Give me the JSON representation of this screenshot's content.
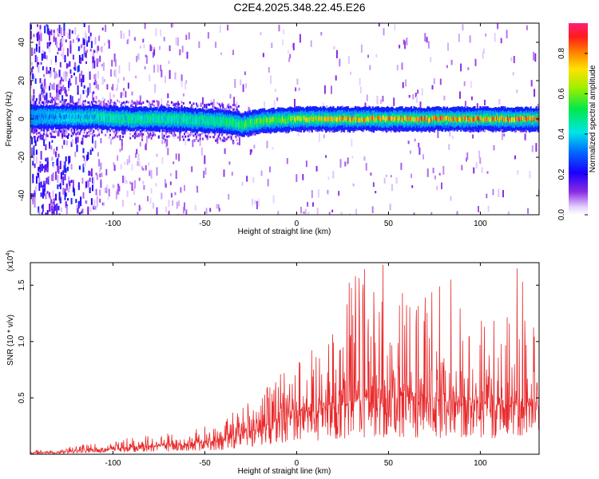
{
  "title": "C2E4.2025.348.22.45.E26",
  "colors": {
    "background": "#ffffff",
    "snr_line": "#e8292b",
    "axis": "#000000"
  },
  "chart_data": [
    {
      "type": "heatmap",
      "name": "spectrogram",
      "xlabel": "Height of straight line (km)",
      "ylabel": "Frequency (Hz)",
      "xlim": [
        -145,
        132
      ],
      "ylim": [
        -50,
        50
      ],
      "xticks": [
        -100,
        -50,
        0,
        50,
        100
      ],
      "xtick_labels": [
        "-100",
        "-50",
        "0",
        "50",
        "100"
      ],
      "yticks": [
        -40,
        -20,
        0,
        20,
        40
      ],
      "ytick_labels": [
        "-40",
        "-20",
        "0",
        "20",
        "40"
      ],
      "colorbar": {
        "label": "Normalized spectral amplitude",
        "range": [
          0,
          0.95
        ],
        "ticks": [
          0,
          0.2,
          0.4,
          0.6,
          0.8
        ],
        "tick_labels": [
          "0.0",
          "0.2",
          "0.4",
          "0.6",
          "0.8"
        ],
        "colormap": "rainbow: white-lavender (0) -> violet -> blue -> cyan -> green -> yellow -> orange -> red -> magenta-pink (0.95)"
      },
      "description": "Narrow band centered near 0 Hz across full height range; broad noisy scatter for heights below about -105 km; dip near -30 km",
      "band_profile": {
        "height_km": [
          -145,
          -130,
          -110,
          -90,
          -70,
          -50,
          -40,
          -30,
          -20,
          0,
          20,
          50,
          80,
          100,
          132
        ],
        "center_hz": [
          1,
          1,
          1,
          0,
          0,
          -1,
          -1,
          -3,
          -1,
          0,
          0,
          0,
          0,
          0,
          0
        ],
        "peak_amplitude": [
          0.35,
          0.4,
          0.45,
          0.5,
          0.5,
          0.5,
          0.55,
          0.6,
          0.65,
          0.75,
          0.85,
          0.9,
          0.9,
          0.9,
          0.95
        ]
      }
    },
    {
      "type": "line",
      "name": "snr",
      "xlabel": "Height of straight line (km)",
      "ylabel": "SNR (10 * v/v)",
      "y_multiplier_label": "(x10",
      "y_multiplier_exponent": "4",
      "y_multiplier_close": ")",
      "xlim": [
        -145,
        132
      ],
      "ylim": [
        0,
        1.7
      ],
      "xticks": [
        -100,
        -50,
        0,
        50,
        100
      ],
      "xtick_labels": [
        "-100",
        "-50",
        "0",
        "50",
        "100"
      ],
      "yticks": [
        0.5,
        1.0,
        1.5
      ],
      "ytick_labels": [
        "0.5",
        "1.0",
        "1.5"
      ],
      "y_units": "x10^4",
      "envelope": {
        "x": [
          -145,
          -130,
          -110,
          -90,
          -70,
          -50,
          -40,
          -30,
          -20,
          -10,
          0,
          10,
          20,
          30,
          40,
          50,
          60,
          70,
          80,
          90,
          100,
          110,
          120,
          132
        ],
        "y_base": [
          0.01,
          0.02,
          0.04,
          0.06,
          0.08,
          0.1,
          0.12,
          0.18,
          0.22,
          0.3,
          0.35,
          0.38,
          0.4,
          0.45,
          0.48,
          0.5,
          0.5,
          0.48,
          0.47,
          0.45,
          0.44,
          0.44,
          0.43,
          0.42
        ],
        "y_peak": [
          0.03,
          0.05,
          0.1,
          0.15,
          0.2,
          0.25,
          0.3,
          0.45,
          0.55,
          0.7,
          0.85,
          0.95,
          1.1,
          1.6,
          1.7,
          1.5,
          1.5,
          1.4,
          1.55,
          1.3,
          1.3,
          1.2,
          1.65,
          1.2
        ]
      },
      "notable_peaks": [
        {
          "x": 32,
          "y": 1.58
        },
        {
          "x": 47,
          "y": 1.68
        },
        {
          "x": 84,
          "y": 1.55
        },
        {
          "x": 120,
          "y": 1.65
        }
      ]
    }
  ]
}
